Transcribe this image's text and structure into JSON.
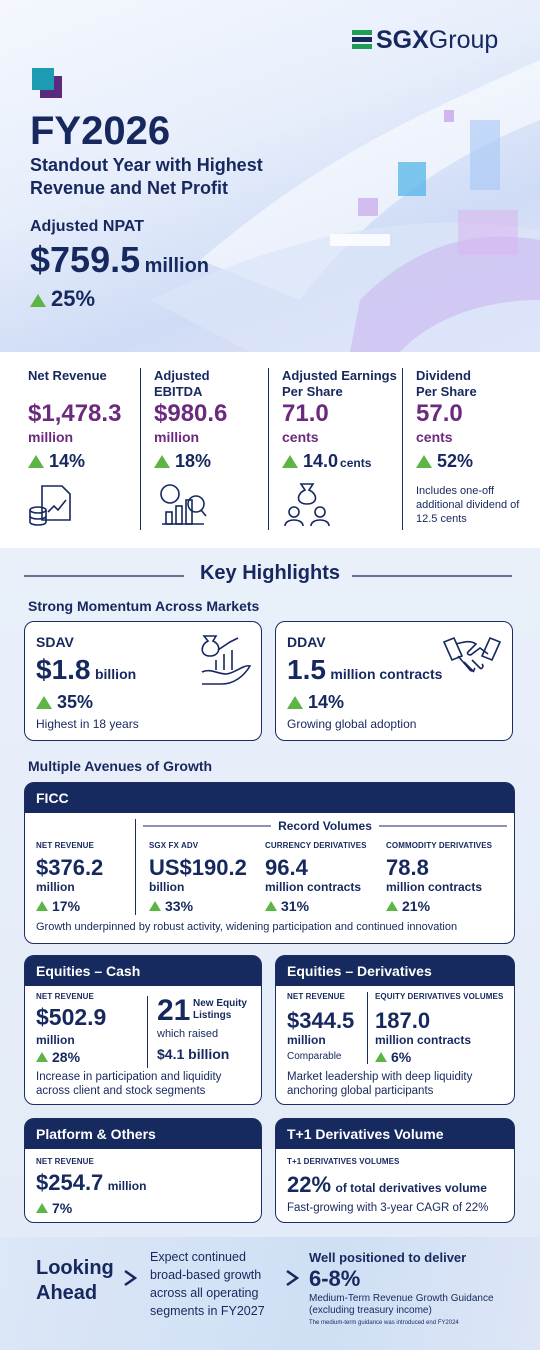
{
  "brand": {
    "name": "SGX",
    "suffix": "Group"
  },
  "hero": {
    "title": "FY2026",
    "subtitle": "Standout Year with Highest Revenue and Net Profit",
    "metric_label": "Adjusted NPAT",
    "metric_value": "$759.5",
    "metric_unit": "million",
    "metric_change": "25%"
  },
  "summary": [
    {
      "label": "Net Revenue",
      "value": "$1,478.3",
      "unit": "million",
      "change": "14%"
    },
    {
      "label": "Adjusted EBITDA",
      "value": "$980.6",
      "unit": "million",
      "change": "18%"
    },
    {
      "label": "Adjusted Earnings Per Share",
      "value": "71.0",
      "unit": "cents",
      "change": "14.0",
      "change_unit": "cents"
    },
    {
      "label": "Dividend Per Share",
      "value": "57.0",
      "unit": "cents",
      "change": "52%",
      "note": "Includes one-off additional dividend of 12.5 cents"
    }
  ],
  "highlights": {
    "title": "Key Highlights",
    "momentum": {
      "title": "Strong Momentum Across Markets",
      "cards": [
        {
          "name": "SDAV",
          "value": "$1.8",
          "unit": "billion",
          "change": "35%",
          "note": "Highest in 18 years"
        },
        {
          "name": "DDAV",
          "value": "1.5",
          "unit": "million contracts",
          "change": "14%",
          "note": "Growing global adoption"
        }
      ]
    },
    "growth_title": "Multiple Avenues of Growth",
    "ficc": {
      "title": "FICC",
      "revenue_label": "NET REVENUE",
      "revenue": "$376.2",
      "revenue_unit": "million",
      "revenue_change": "17%",
      "volumes_title": "Record Volumes",
      "volumes": [
        {
          "label": "SGX FX ADV",
          "value": "US$190.2",
          "unit": "billion",
          "change": "33%"
        },
        {
          "label": "CURRENCY DERIVATIVES",
          "value": "96.4",
          "unit": "million contracts",
          "change": "31%"
        },
        {
          "label": "COMMODITY DERIVATIVES",
          "value": "78.8",
          "unit": "million contracts",
          "change": "21%"
        }
      ],
      "note": "Growth underpinned by robust activity, widening participation and continued innovation"
    },
    "equities_cash": {
      "title": "Equities – Cash",
      "revenue_label": "NET REVENUE",
      "revenue": "$502.9",
      "revenue_unit": "million",
      "revenue_change": "28%",
      "listings": "21",
      "listings_label": "New Equity Listings",
      "raised_label": "which raised",
      "raised": "$4.1 billion",
      "note": "Increase in participation and liquidity across client and stock segments"
    },
    "equities_derivatives": {
      "title": "Equities – Derivatives",
      "revenue_label": "NET REVENUE",
      "revenue": "$344.5",
      "revenue_unit": "million",
      "revenue_change": "Comparable",
      "volumes_label": "EQUITY DERIVATIVES VOLUMES",
      "volumes": "187.0",
      "volumes_unit": "million contracts",
      "volumes_change": "6%",
      "note": "Market leadership with deep liquidity anchoring global participants"
    },
    "platform": {
      "title": "Platform & Others",
      "revenue_label": "NET REVENUE",
      "revenue": "$254.7",
      "revenue_unit": "million",
      "revenue_change": "7%"
    },
    "t1": {
      "title": "T+1 Derivatives Volume",
      "label": "T+1 DERIVATIVES VOLUMES",
      "value": "22%",
      "unit": "of total derivatives volume",
      "note": "Fast-growing with 3-year CAGR of 22%"
    }
  },
  "outlook": {
    "title": "Looking Ahead",
    "text": "Expect continued broad-based growth across all operating segments in FY2027",
    "lead": "Well positioned to deliver",
    "value": "6-8%",
    "description": "Medium-Term Revenue Growth Guidance (excluding treasury income)",
    "footnote": "The medium-term guidance was introduced end FY2024"
  }
}
